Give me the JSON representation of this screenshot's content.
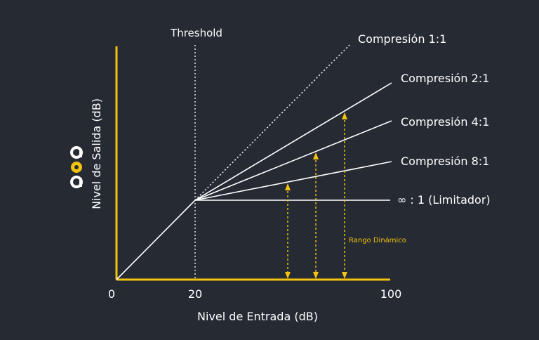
{
  "colors": {
    "background": "#262a33",
    "axis": "#f1c40f",
    "line": "#ffffff",
    "accent": "#f1c40f",
    "text": "#ffffff"
  },
  "logo": {
    "icon": "aoa-logo-icon"
  },
  "diagram": {
    "threshold_label": "Threshold",
    "x_axis_label": "Nivel de Entrada (dB)",
    "y_axis_label": "Nivel de Salida (dB)",
    "x_ticks": [
      "0",
      "20",
      "100"
    ],
    "threshold_input_db": 20,
    "x_max_db": 100,
    "curves": [
      {
        "label": "Compresión 1:1",
        "ratio": 1,
        "dashed": true
      },
      {
        "label": "Compresión 2:1",
        "ratio": 2,
        "dashed": false
      },
      {
        "label": "Compresión 4:1",
        "ratio": 4,
        "dashed": false
      },
      {
        "label": "Compresión 8:1",
        "ratio": 8,
        "dashed": false
      },
      {
        "label": "∞ : 1 (Limitador)",
        "ratio": "inf",
        "dashed": false
      }
    ],
    "dynamic_range_label": "Rango Dinámico"
  }
}
